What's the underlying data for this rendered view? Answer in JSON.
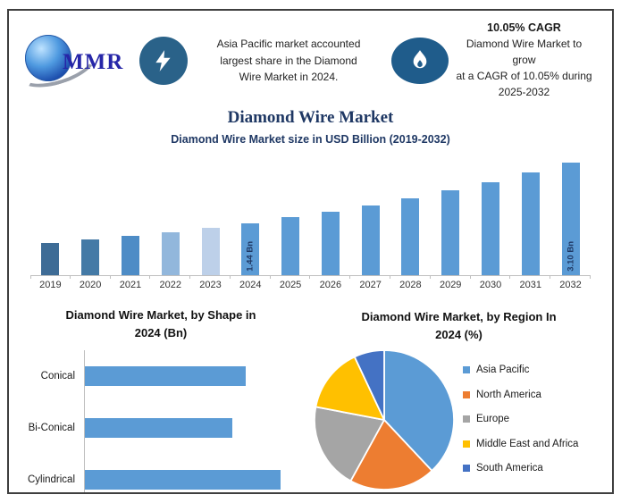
{
  "header": {
    "logo_text": "MMR",
    "highlight_lines": [
      "Asia Pacific market accounted",
      "largest share in the Diamond",
      "Wire Market in 2024."
    ],
    "cagr_title": "10.05% CAGR",
    "cagr_lines": [
      "Diamond Wire Market to grow",
      "at a CAGR of 10.05% during",
      "2025-2032"
    ]
  },
  "page_title": "Diamond Wire Market",
  "colors": {
    "accent_navy": "#1F3864",
    "bar_default": "#5B9BD5",
    "axis_gray": "#BFBFBF",
    "frame_border": "#3F3F3F",
    "bolt_circle": "#2A6289",
    "flame_circle": "#1F5C8B",
    "logo_blue": "#2626A8"
  },
  "icons": [
    "globe-logo-icon",
    "lightning-icon",
    "flame-icon"
  ],
  "chart_data": [
    {
      "type": "bar",
      "title": "Diamond Wire Market size in USD Billion (2019-2032)",
      "categories": [
        "2019",
        "2020",
        "2021",
        "2022",
        "2023",
        "2024",
        "2025",
        "2026",
        "2027",
        "2028",
        "2029",
        "2030",
        "2031",
        "2032"
      ],
      "values": [
        0.89,
        0.98,
        1.08,
        1.19,
        1.31,
        1.44,
        1.59,
        1.75,
        1.92,
        2.12,
        2.33,
        2.56,
        2.82,
        3.1
      ],
      "unit": "USD Billion",
      "ylim": [
        0,
        3.3
      ],
      "grid": false,
      "default_bar_color": "#5B9BD5",
      "bar_colors_by_index": {
        "0": "#3E6C96",
        "1": "#447AA6",
        "2": "#4E8CC6",
        "3": "#92B7DC",
        "4": "#BDD0E9"
      },
      "data_labels": {
        "5": "1.44 Bn",
        "13": "3.10 Bn"
      }
    },
    {
      "type": "bar",
      "orientation": "horizontal",
      "title_lines": [
        "Diamond Wire Market, by Shape in",
        "2024 (Bn)"
      ],
      "categories": [
        "Conical",
        "Bi-Conical",
        "Cylindrical"
      ],
      "values": [
        0.46,
        0.42,
        0.56
      ],
      "xlim": [
        0,
        0.6
      ],
      "bar_color": "#5B9BD5"
    },
    {
      "type": "pie",
      "title_lines": [
        "Diamond Wire Market, by Region In",
        "2024 (%)"
      ],
      "labels": [
        "Asia Pacific",
        "North America",
        "Europe",
        "Middle East and Africa",
        "South America"
      ],
      "values": [
        38,
        20,
        20,
        15,
        7
      ],
      "colors": [
        "#5B9BD5",
        "#ED7D31",
        "#A5A5A5",
        "#FFC000",
        "#4472C4"
      ],
      "legend_position": "right",
      "slice_border_color": "#FFFFFF"
    }
  ]
}
